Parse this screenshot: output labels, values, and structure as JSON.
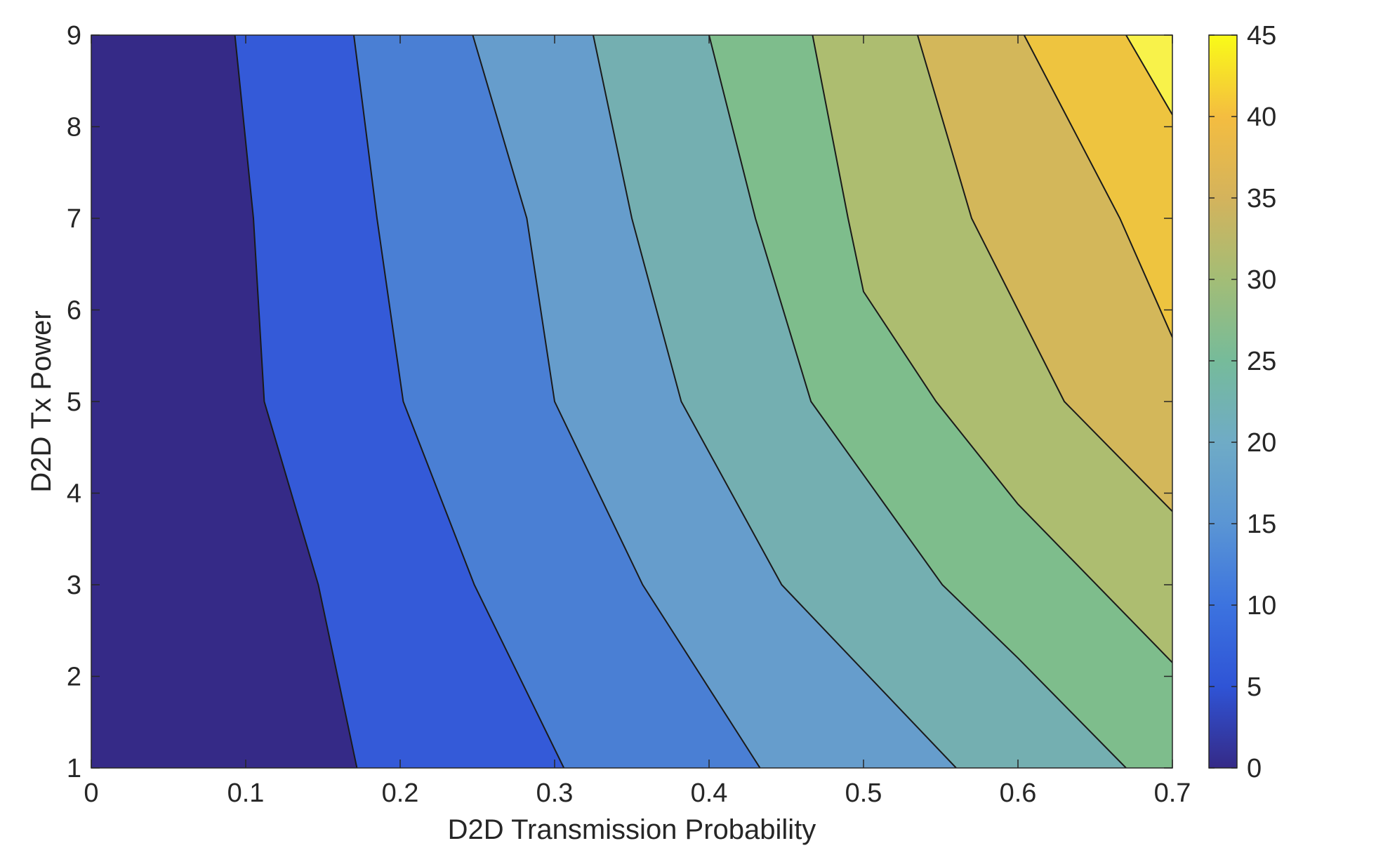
{
  "chart_data": {
    "type": "heatmap",
    "subtype": "filled-contour",
    "title": "",
    "xlabel": "D2D Transmission Probability",
    "ylabel": "D2D Tx Power",
    "xlim": [
      0,
      0.7
    ],
    "ylim": [
      1,
      9
    ],
    "xticks": [
      "0",
      "0.1",
      "0.2",
      "0.3",
      "0.4",
      "0.5",
      "0.6",
      "0.7"
    ],
    "yticks": [
      "1",
      "2",
      "3",
      "4",
      "5",
      "6",
      "7",
      "8",
      "9"
    ],
    "colorbar": {
      "range": [
        0,
        45
      ],
      "ticks": [
        "0",
        "5",
        "10",
        "15",
        "20",
        "25",
        "30",
        "35",
        "40",
        "45"
      ],
      "colormap": "parula"
    },
    "levels": [
      5,
      10,
      15,
      20,
      25,
      30,
      35,
      40
    ],
    "band_colors": [
      "#352a87",
      "#345ad8",
      "#4a7fd4",
      "#669dcc",
      "#74afb1",
      "#7ebd8c",
      "#adbd70",
      "#d3b75a",
      "#eec43f",
      "#f8f24a"
    ],
    "contours": [
      {
        "level": 5,
        "points": [
          [
            0.172,
            1
          ],
          [
            0.147,
            3
          ],
          [
            0.112,
            5
          ],
          [
            0.105,
            7
          ],
          [
            0.093,
            9
          ]
        ]
      },
      {
        "level": 10,
        "points": [
          [
            0.306,
            1
          ],
          [
            0.248,
            3
          ],
          [
            0.202,
            5
          ],
          [
            0.185,
            7
          ],
          [
            0.17,
            9
          ]
        ]
      },
      {
        "level": 15,
        "points": [
          [
            0.433,
            1
          ],
          [
            0.357,
            3
          ],
          [
            0.3,
            5
          ],
          [
            0.282,
            7
          ],
          [
            0.247,
            9
          ]
        ]
      },
      {
        "level": 20,
        "points": [
          [
            0.56,
            1
          ],
          [
            0.447,
            3
          ],
          [
            0.382,
            5
          ],
          [
            0.35,
            7
          ],
          [
            0.325,
            9
          ]
        ]
      },
      {
        "level": 25,
        "points": [
          [
            0.67,
            1
          ],
          [
            0.6,
            2.2
          ],
          [
            0.551,
            3
          ],
          [
            0.5,
            4.2
          ],
          [
            0.466,
            5
          ],
          [
            0.43,
            7
          ],
          [
            0.4,
            9
          ]
        ]
      },
      {
        "level": 30,
        "points": [
          [
            0.7,
            2.15
          ],
          [
            0.6,
            3.88
          ],
          [
            0.547,
            5
          ],
          [
            0.5,
            6.2
          ],
          [
            0.49,
            7
          ],
          [
            0.467,
            9
          ]
        ]
      },
      {
        "level": 35,
        "points": [
          [
            0.7,
            3.8
          ],
          [
            0.63,
            5
          ],
          [
            0.57,
            7
          ],
          [
            0.535,
            9
          ]
        ]
      },
      {
        "level": 40,
        "points": [
          [
            0.7,
            5.7
          ],
          [
            0.666,
            7
          ],
          [
            0.604,
            9
          ]
        ]
      },
      {
        "level": 45,
        "points": [
          [
            0.7,
            8.13
          ],
          [
            0.67,
            9
          ]
        ]
      }
    ]
  }
}
